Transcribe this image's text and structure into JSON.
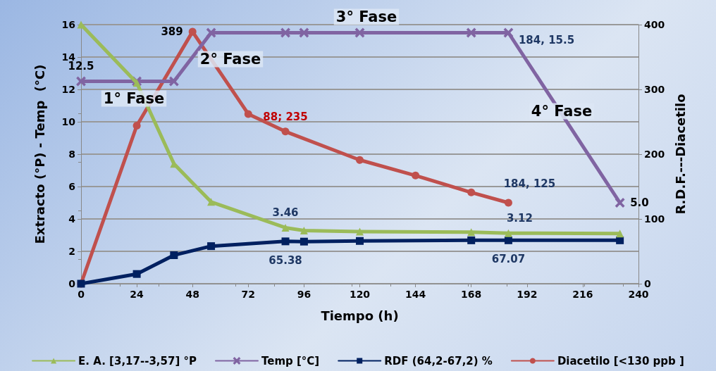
{
  "chart_data": {
    "type": "line",
    "xlabel": "Tiempo (h)",
    "ylabel": "Extracto (°P) - Temp  (°C)",
    "y2label": "R.D.F.---Diacetilo",
    "xlim": [
      0,
      240
    ],
    "xticks": [
      0,
      24,
      48,
      72,
      96,
      120,
      144,
      168,
      192,
      216,
      240
    ],
    "ylim": [
      0,
      16
    ],
    "yticks": [
      0,
      2,
      4,
      6,
      8,
      10,
      12,
      14,
      16
    ],
    "y2lim": [
      0,
      400
    ],
    "y2ticks": [
      0,
      100,
      200,
      300,
      400
    ],
    "grid": "y",
    "legend": "bottom",
    "series": [
      {
        "name": "E. A. [3,17--3,57] °P",
        "color": "#9bbb59",
        "marker": "triangle",
        "x": [
          0,
          24,
          40,
          56,
          88,
          96,
          120,
          168,
          184,
          232
        ],
        "values": [
          16,
          12.4,
          7.4,
          5.05,
          3.46,
          3.28,
          3.22,
          3.18,
          3.12,
          3.1
        ],
        "value_labels": [
          null,
          null,
          null,
          null,
          "3.46",
          null,
          null,
          null,
          "3.12",
          null
        ]
      },
      {
        "name": "Temp [°C]",
        "color": "#8064a2",
        "marker": "cross",
        "x": [
          0,
          24,
          40,
          56,
          88,
          96,
          120,
          168,
          184,
          232
        ],
        "values": [
          12.5,
          12.5,
          12.5,
          15.5,
          15.5,
          15.5,
          15.5,
          15.5,
          15.5,
          5.0
        ],
        "value_labels": [
          "12.5",
          null,
          null,
          null,
          null,
          null,
          null,
          null,
          "184, 15.5",
          "5.0"
        ]
      },
      {
        "name": "RDF (64,2-67,2) %",
        "color": "#002060",
        "marker": "square",
        "axis": "y2",
        "x": [
          0,
          24,
          40,
          56,
          88,
          96,
          120,
          168,
          184,
          232
        ],
        "values": [
          0,
          15,
          44,
          58,
          65.38,
          65,
          66,
          67,
          67.07,
          67
        ],
        "value_labels": [
          null,
          null,
          null,
          null,
          "65.38",
          null,
          null,
          null,
          "67.07",
          null
        ]
      },
      {
        "name": "Diacetilo [<130 ppb ]",
        "color": "#c0504d",
        "marker": "circle",
        "axis": "y2",
        "x": [
          0,
          24,
          48,
          72,
          88,
          120,
          144,
          168,
          184
        ],
        "values": [
          0,
          244,
          389,
          262,
          235,
          191,
          167,
          141,
          125
        ],
        "value_labels": [
          null,
          null,
          "389",
          null,
          "88; 235",
          null,
          null,
          null,
          "184, 125"
        ]
      }
    ],
    "annotations": [
      "1° Fase",
      "2° Fase",
      "3° Fase",
      "4° Fase"
    ]
  }
}
